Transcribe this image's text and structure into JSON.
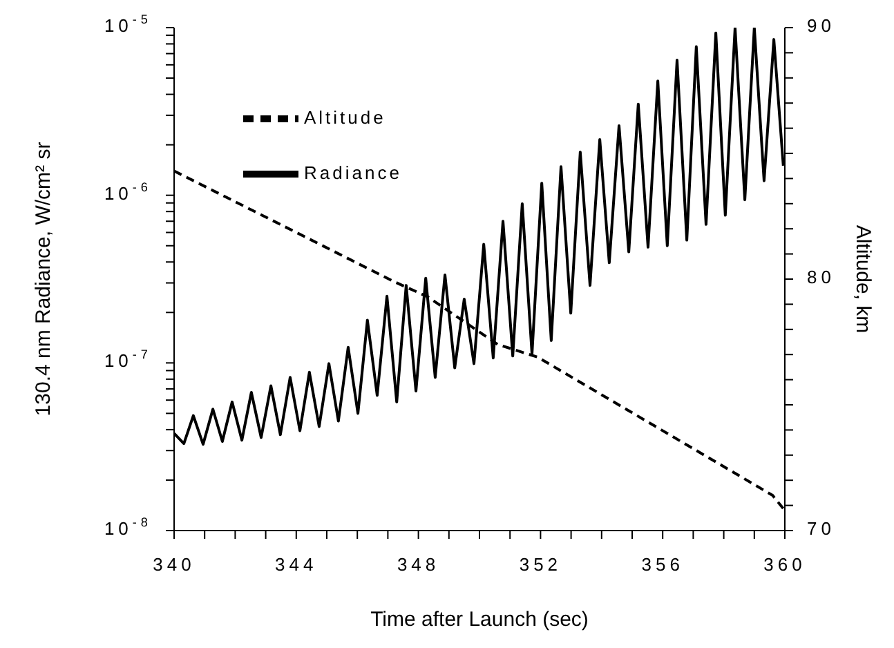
{
  "chart_data": {
    "type": "line",
    "xlabel": "Time after Launch (sec)",
    "ylabel": "130.4 nm Radiance, W/cm² sr",
    "y2label": "Altitude, km",
    "log": "y",
    "legend": "top left",
    "grid": false,
    "marker": "none",
    "xlim": [
      340,
      360
    ],
    "xticks": [
      340,
      {
        "value": 341,
        "label": null
      },
      {
        "value": 342,
        "label": null
      },
      {
        "value": 343,
        "label": null
      },
      344,
      {
        "value": 345,
        "label": null
      },
      {
        "value": 346,
        "label": null
      },
      {
        "value": 347,
        "label": null
      },
      348,
      {
        "value": 349,
        "label": null
      },
      {
        "value": 350,
        "label": null
      },
      {
        "value": 351,
        "label": null
      },
      352,
      {
        "value": 353,
        "label": null
      },
      {
        "value": 354,
        "label": null
      },
      {
        "value": 355,
        "label": null
      },
      356,
      {
        "value": 357,
        "label": null
      },
      {
        "value": 358,
        "label": null
      },
      {
        "value": 359,
        "label": null
      },
      360
    ],
    "ylim": [
      1e-08,
      1e-05
    ],
    "yticks": [
      {
        "value": 1e-08,
        "label": "10$^{-8}$"
      },
      {
        "value": 2e-08,
        "label": null
      },
      {
        "value": 3e-08,
        "label": null
      },
      {
        "value": 4e-08,
        "label": null
      },
      {
        "value": 5e-08,
        "label": null
      },
      {
        "value": 6e-08,
        "label": null
      },
      {
        "value": 7e-08,
        "label": null
      },
      {
        "value": 8e-08,
        "label": null
      },
      {
        "value": 9e-08,
        "label": null
      },
      {
        "value": 1e-07,
        "label": "10$^{-7}$"
      },
      {
        "value": 2e-07,
        "label": null
      },
      {
        "value": 3e-07,
        "label": null
      },
      {
        "value": 4e-07,
        "label": null
      },
      {
        "value": 5e-07,
        "label": null
      },
      {
        "value": 6e-07,
        "label": null
      },
      {
        "value": 7e-07,
        "label": null
      },
      {
        "value": 8e-07,
        "label": null
      },
      {
        "value": 9e-07,
        "label": null
      },
      {
        "value": 1e-06,
        "label": "10$^{-6}$"
      },
      {
        "value": 2e-06,
        "label": null
      },
      {
        "value": 3e-06,
        "label": null
      },
      {
        "value": 4e-06,
        "label": null
      },
      {
        "value": 5e-06,
        "label": null
      },
      {
        "value": 6e-06,
        "label": null
      },
      {
        "value": 7e-06,
        "label": null
      },
      {
        "value": 8e-06,
        "label": null
      },
      {
        "value": 9e-06,
        "label": null
      },
      {
        "value": 1e-05,
        "label": "10$^{-5}$"
      }
    ],
    "y2lim": [
      70,
      90
    ],
    "y2ticks": [
      70,
      {
        "value": 71,
        "label": null
      },
      {
        "value": 72,
        "label": null
      },
      {
        "value": 73,
        "label": null
      },
      {
        "value": 74,
        "label": null
      },
      {
        "value": 75,
        "label": null
      },
      {
        "value": 76,
        "label": null
      },
      {
        "value": 77,
        "label": null
      },
      {
        "value": 78,
        "label": null
      },
      {
        "value": 79,
        "label": null
      },
      80,
      {
        "value": 81,
        "label": null
      },
      {
        "value": 82,
        "label": null
      },
      {
        "value": 83,
        "label": null
      },
      {
        "value": 84,
        "label": null
      },
      {
        "value": 85,
        "label": null
      },
      {
        "value": 86,
        "label": null
      },
      {
        "value": 87,
        "label": null
      },
      {
        "value": 88,
        "label": null
      },
      {
        "value": 89,
        "label": null
      },
      90
    ],
    "series": [
      {
        "name": "Altitude",
        "color": "#000000",
        "axis": "y2",
        "line_style": "dashed",
        "x": [
          340,
          347.2,
          348.3,
          350.6,
          351.9,
          355.4,
          359.6,
          360
        ],
        "values": [
          84.3,
          79.9,
          79.3,
          77.4,
          76.9,
          74.4,
          71.4,
          70.8
        ]
      },
      {
        "name": "Radiance",
        "color": "#000000",
        "line_style": "solid",
        "x": [
          340,
          340.32,
          340.63,
          340.95,
          341.27,
          341.58,
          341.9,
          342.22,
          342.53,
          342.85,
          343.17,
          343.48,
          343.8,
          344.12,
          344.43,
          344.75,
          345.07,
          345.38,
          345.7,
          346.02,
          346.33,
          346.65,
          346.97,
          347.29,
          347.6,
          347.92,
          348.24,
          348.55,
          348.87,
          349.19,
          349.5,
          349.82,
          350.14,
          350.45,
          350.77,
          351.09,
          351.4,
          351.72,
          352.04,
          352.35,
          352.67,
          352.99,
          353.3,
          353.62,
          353.94,
          354.25,
          354.57,
          354.89,
          355.2,
          355.52,
          355.84,
          356.15,
          356.47,
          356.79,
          357.1,
          357.42,
          357.74,
          358.05,
          358.37,
          358.69,
          359,
          359.32,
          359.64,
          359.95
        ],
        "values": [
          3.8e-08,
          3.3e-08,
          4.85e-08,
          3.27e-08,
          5.3e-08,
          3.4e-08,
          5.85e-08,
          3.46e-08,
          6.67e-08,
          3.59e-08,
          7.3e-08,
          3.73e-08,
          8.2e-08,
          3.94e-08,
          8.8e-08,
          4.17e-08,
          9.9e-08,
          4.5e-08,
          1.24e-07,
          5e-08,
          1.8e-07,
          6.4e-08,
          2.5e-07,
          5.85e-08,
          2.9e-07,
          6.8e-08,
          3.2e-07,
          8.2e-08,
          3.35e-07,
          9.35e-08,
          2.4e-07,
          9.9e-08,
          5.1e-07,
          1.07e-07,
          7e-07,
          1.1e-07,
          8.9e-07,
          1.13e-07,
          1.18e-06,
          1.36e-07,
          1.48e-06,
          1.98e-07,
          1.81e-06,
          2.9e-07,
          2.15e-06,
          3.96e-07,
          2.6e-06,
          4.6e-07,
          3.5e-06,
          4.9e-07,
          4.8e-06,
          5e-07,
          6.4e-06,
          5.4e-07,
          7.7e-06,
          6.7e-07,
          9.3e-06,
          7.6e-07,
          1e-05,
          9.4e-07,
          1e-05,
          1.22e-06,
          8.5e-06,
          1.5e-06
        ]
      }
    ]
  }
}
